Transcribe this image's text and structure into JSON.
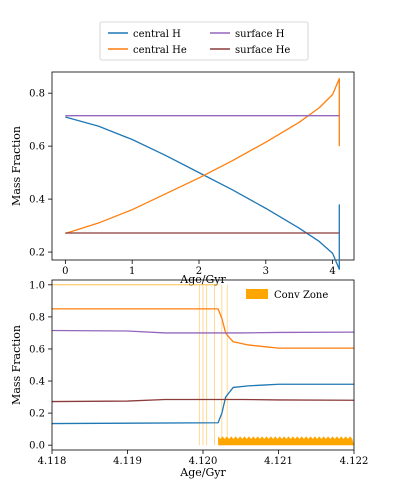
{
  "colors": {
    "central_h": "#1f77b4",
    "central_he": "#ff7f0e",
    "surface_h": "#9467bd",
    "surface_he": "#8c3b3b",
    "conv_zone": "#ffa500"
  },
  "legend_top": {
    "placement": "top-center",
    "entries": [
      "central H",
      "central He",
      "surface H",
      "surface He"
    ]
  },
  "chart_data": [
    {
      "type": "line",
      "xlabel": "Age/Gyr",
      "ylabel": "Mass Fraction",
      "xlim": [
        -0.2,
        4.32
      ],
      "ylim": [
        0.17,
        0.88
      ],
      "xticks": [
        0,
        1,
        2,
        3,
        4
      ],
      "yticks": [
        0.2,
        0.4,
        0.6,
        0.8
      ],
      "grid": false,
      "series": [
        {
          "name": "central H",
          "x": [
            0,
            0.5,
            1,
            1.5,
            2,
            2.5,
            3,
            3.5,
            3.8,
            4.0,
            4.1,
            4.1,
            4.1
          ],
          "y": [
            0.71,
            0.675,
            0.625,
            0.565,
            0.5,
            0.435,
            0.365,
            0.29,
            0.24,
            0.195,
            0.135,
            0.25,
            0.38
          ]
        },
        {
          "name": "central He",
          "x": [
            0,
            0.5,
            1,
            1.5,
            2,
            2.5,
            3,
            3.5,
            3.8,
            4.0,
            4.1,
            4.1,
            4.1
          ],
          "y": [
            0.27,
            0.31,
            0.36,
            0.42,
            0.48,
            0.545,
            0.615,
            0.69,
            0.745,
            0.795,
            0.855,
            0.73,
            0.6
          ]
        },
        {
          "name": "surface H",
          "x": [
            0,
            4.1
          ],
          "y": [
            0.715,
            0.715
          ]
        },
        {
          "name": "surface He",
          "x": [
            0,
            4.1
          ],
          "y": [
            0.272,
            0.272
          ]
        }
      ]
    },
    {
      "type": "line",
      "xlabel": "Age/Gyr",
      "ylabel": "Mass Fraction",
      "xlim": [
        4.118,
        4.122
      ],
      "ylim": [
        -0.03,
        1.03
      ],
      "xticks": [
        "4.118",
        "4.119",
        "4.120",
        "4.121",
        "4.122"
      ],
      "yticks": [
        "0.0",
        "0.2",
        "0.4",
        "0.6",
        "0.8",
        "1.0"
      ],
      "grid": false,
      "legend": {
        "placement": "top-right",
        "entries": [
          "Conv Zone"
        ]
      },
      "series": [
        {
          "name": "central H",
          "x": [
            4.118,
            4.1202,
            4.12025,
            4.1203,
            4.12035,
            4.1204,
            4.1206,
            4.1208,
            4.121,
            4.122
          ],
          "y": [
            0.135,
            0.14,
            0.2,
            0.3,
            0.33,
            0.36,
            0.37,
            0.375,
            0.38,
            0.38
          ]
        },
        {
          "name": "central He",
          "x": [
            4.118,
            4.1202,
            4.12025,
            4.1203,
            4.12035,
            4.1204,
            4.1206,
            4.1208,
            4.121,
            4.122
          ],
          "y": [
            0.85,
            0.85,
            0.79,
            0.7,
            0.67,
            0.645,
            0.625,
            0.615,
            0.605,
            0.605
          ]
        },
        {
          "name": "surface H",
          "x": [
            4.118,
            4.119,
            4.1195,
            4.1205,
            4.121,
            4.122
          ],
          "y": [
            0.715,
            0.712,
            0.7,
            0.7,
            0.703,
            0.705
          ]
        },
        {
          "name": "surface He",
          "x": [
            4.118,
            4.119,
            4.1195,
            4.1205,
            4.121,
            4.122
          ],
          "y": [
            0.272,
            0.275,
            0.285,
            0.285,
            0.282,
            0.28
          ]
        }
      ],
      "conv_zone": {
        "band_x": [
          4.1202,
          4.122
        ],
        "band_y": [
          0.0,
          0.055
        ],
        "flash_x": [
          4.12,
          4.11995,
          4.12005,
          4.12015,
          4.12025,
          4.12032
        ],
        "flash_y": [
          0.0,
          1.0
        ]
      }
    }
  ]
}
